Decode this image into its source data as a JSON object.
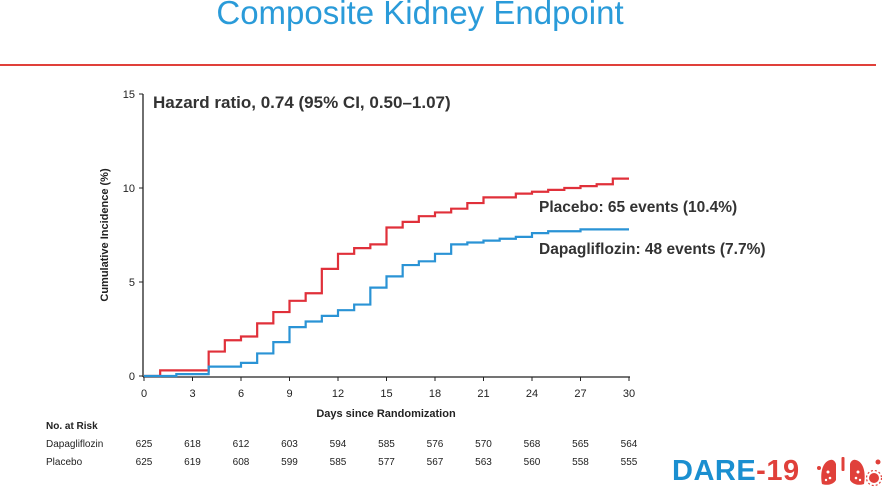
{
  "slide": {
    "title": "Composite Kidney Endpoint"
  },
  "colors": {
    "title": "#2a9bd9",
    "rule": "#e0403a",
    "placebo": "#e0303a",
    "dapagliflozin": "#2a93d5",
    "axis": "#222222"
  },
  "chart_data": {
    "type": "line",
    "title": "",
    "xlabel": "Days since Randomization",
    "ylabel": "Cumulative Incidence (%)",
    "xlim": [
      0,
      30
    ],
    "ylim": [
      0,
      15
    ],
    "xticks": [
      0,
      3,
      6,
      9,
      12,
      15,
      18,
      21,
      24,
      27,
      30
    ],
    "yticks": [
      0,
      5,
      10,
      15
    ],
    "grid": false,
    "step": true,
    "annotation": "Hazard ratio, 0.74 (95% CI, 0.50–1.07)",
    "series": [
      {
        "name": "Placebo",
        "label": "Placebo: 65 events (10.4%)",
        "color": "#e0303a",
        "x": [
          0,
          1,
          4,
          5,
          6,
          7,
          8,
          9,
          10,
          11,
          12,
          13,
          14,
          15,
          16,
          17,
          18,
          19,
          20,
          21,
          22,
          23,
          24,
          25,
          26,
          27,
          28,
          29,
          30
        ],
        "y": [
          0,
          0.3,
          1.3,
          1.9,
          2.1,
          2.8,
          3.4,
          4.0,
          4.4,
          5.7,
          6.5,
          6.8,
          7.0,
          7.9,
          8.2,
          8.5,
          8.7,
          8.9,
          9.2,
          9.5,
          9.5,
          9.7,
          9.8,
          9.9,
          10.0,
          10.1,
          10.2,
          10.5,
          10.5
        ]
      },
      {
        "name": "Dapagliflozin",
        "label": "Dapagliflozin: 48 events (7.7%)",
        "color": "#2a93d5",
        "x": [
          0,
          2,
          4,
          6,
          7,
          8,
          9,
          10,
          11,
          12,
          13,
          14,
          15,
          16,
          17,
          18,
          19,
          20,
          21,
          22,
          23,
          24,
          25,
          26,
          27,
          28,
          29,
          30
        ],
        "y": [
          0,
          0.1,
          0.5,
          0.7,
          1.2,
          1.8,
          2.6,
          2.9,
          3.2,
          3.5,
          3.8,
          4.7,
          5.3,
          5.9,
          6.1,
          6.5,
          7.0,
          7.1,
          7.2,
          7.3,
          7.4,
          7.6,
          7.7,
          7.7,
          7.8,
          7.8,
          7.8,
          7.8
        ]
      }
    ]
  },
  "risk_table": {
    "header": "No. at Risk",
    "timepoints": [
      0,
      3,
      6,
      9,
      12,
      15,
      18,
      21,
      24,
      27,
      30
    ],
    "rows": [
      {
        "label": "Dapagliflozin",
        "values": [
          "625",
          "618",
          "612",
          "603",
          "594",
          "585",
          "576",
          "570",
          "568",
          "565",
          "564"
        ]
      },
      {
        "label": "Placebo",
        "values": [
          "625",
          "619",
          "608",
          "599",
          "585",
          "577",
          "567",
          "563",
          "560",
          "558",
          "555"
        ]
      }
    ]
  },
  "logo": {
    "text_part1": "DARE",
    "text_part2": "-19"
  }
}
